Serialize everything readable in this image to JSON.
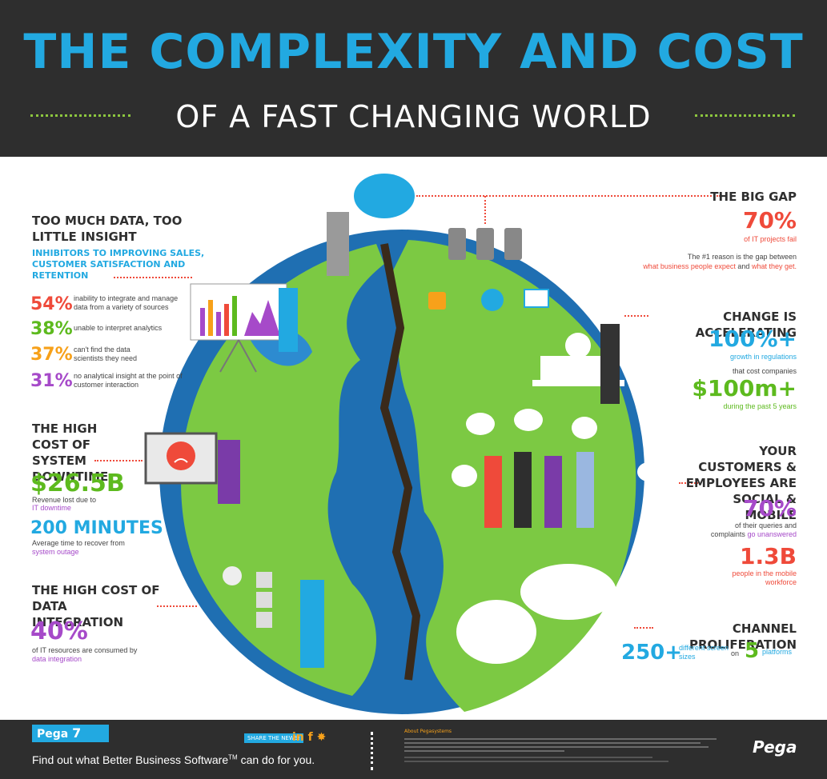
{
  "header": {
    "title": "THE COMPLEXITY AND COST",
    "subtitle": "OF A FAST CHANGING WORLD"
  },
  "colors": {
    "blue": "#22a9e1",
    "green": "#5dba1e",
    "red": "#ef4a3a",
    "orange": "#f7a11a",
    "purple": "#a64ac9",
    "dark": "#2e2e2e",
    "ocean": "#1f6fb2",
    "land": "#7cc943"
  },
  "data_section": {
    "heading": "TOO MUCH DATA, TOO LITTLE INSIGHT",
    "subheading": "INHIBITORS TO IMPROVING SALES, CUSTOMER SATISFACTION AND RETENTION",
    "stats": [
      {
        "pct": "54%",
        "text": "inability to integrate and manage data from a variety of sources"
      },
      {
        "pct": "38%",
        "text": "unable to interpret analytics"
      },
      {
        "pct": "37%",
        "text": "can't find the data scientists they need"
      },
      {
        "pct": "31%",
        "text": "no analytical insight at the point of customer interaction"
      }
    ]
  },
  "downtime": {
    "heading": "THE HIGH COST OF SYSTEM DOWNTIME",
    "value": "$26.5B",
    "text": "Revenue lost due to",
    "highlight": "IT downtime",
    "value2": "200 MINUTES",
    "text2": "Average time to recover from",
    "highlight2": "system outage"
  },
  "integration": {
    "heading": "THE HIGH COST OF DATA INTEGRATION",
    "value": "40%",
    "text": "of IT resources are consumed by",
    "highlight": "data integration"
  },
  "big_gap": {
    "heading": "THE BIG GAP",
    "value": "70%",
    "sub": "of IT projects fail",
    "text": "The #1 reason is the gap between",
    "highlight_a": "what business people expect",
    "and": "and",
    "highlight_b": "what they get."
  },
  "change": {
    "heading": "CHANGE IS ACCELERATING",
    "value": "100%+",
    "sub": "growth in regulations",
    "text": "that cost companies",
    "value2": "$100m+",
    "sub2": "during the past 5 years"
  },
  "social": {
    "heading": "YOUR CUSTOMERS & EMPLOYEES ARE SOCIAL & MOBILE",
    "value": "70%",
    "text": "of their queries and",
    "text_b": "complaints",
    "highlight": "go unanswered",
    "value2": "1.3B",
    "sub2": "people in the mobile workforce"
  },
  "channel": {
    "heading": "CHANNEL PROLIFERATION",
    "value": "250+",
    "sub": "different screen sizes",
    "on": "on",
    "value2": "5",
    "sub2": "platforms"
  },
  "footer": {
    "logo": "Pega",
    "version": "7",
    "tagline": "Find out what Better Business Software",
    "tm": "TM",
    "tagline_end": " can do for you.",
    "share": "SHARE THE NEWS!",
    "social_icons": [
      "linkedin-icon",
      "facebook-icon",
      "twitter-icon"
    ],
    "about_title": "About Pegasystems",
    "brand": "Pega"
  }
}
